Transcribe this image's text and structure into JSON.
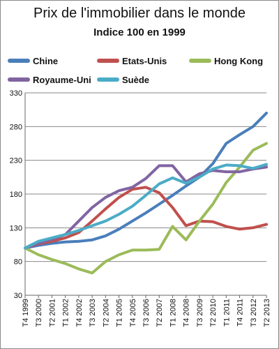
{
  "chart_data": {
    "type": "line",
    "title": "Prix de l'immobilier  dans le monde",
    "subtitle": "Indice 100 en 1999",
    "xlabel": "",
    "ylabel": "",
    "ylim": [
      30,
      330
    ],
    "yticks": [
      30,
      80,
      130,
      180,
      230,
      280,
      330
    ],
    "grid": "horizontal",
    "legend_position": "top",
    "x_tick_labels": [
      "T4 1999",
      "T3 2000",
      "T2 2001",
      "T1 2002",
      "T4 2002",
      "T3 2003",
      "T2 2004",
      "T1 2005",
      "T4 2005",
      "T3 2006",
      "T2 2007",
      "T1 2008",
      "T4 2008",
      "T3 2009",
      "T2 2010",
      "T1 2011",
      "T4 2011",
      "T3 2012",
      "T2 2013"
    ],
    "series": [
      {
        "name": "Chine",
        "color": "#4a7ebb",
        "values": [
          100,
          104,
          107,
          109,
          110,
          112,
          118,
          128,
          140,
          152,
          165,
          178,
          192,
          205,
          225,
          255,
          268,
          280,
          300
        ]
      },
      {
        "name": "Etats-Unis",
        "color": "#c0504d",
        "values": [
          100,
          106,
          110,
          115,
          123,
          140,
          158,
          175,
          187,
          190,
          182,
          160,
          133,
          140,
          139,
          132,
          128,
          130,
          135
        ]
      },
      {
        "name": "Hong Kong",
        "color": "#9bbb59",
        "values": [
          100,
          90,
          83,
          77,
          69,
          63,
          80,
          90,
          97,
          97,
          98,
          132,
          112,
          140,
          165,
          197,
          220,
          245,
          255
        ]
      },
      {
        "name": "Royaume-Uni",
        "color": "#8064a2",
        "values": [
          100,
          107,
          113,
          120,
          140,
          160,
          175,
          185,
          190,
          203,
          222,
          222,
          198,
          210,
          215,
          213,
          213,
          217,
          220
        ]
      },
      {
        "name": "Suède",
        "color": "#4bacc6",
        "values": [
          100,
          110,
          115,
          120,
          126,
          133,
          140,
          150,
          162,
          178,
          195,
          204,
          196,
          205,
          217,
          223,
          222,
          218,
          224
        ]
      }
    ]
  }
}
